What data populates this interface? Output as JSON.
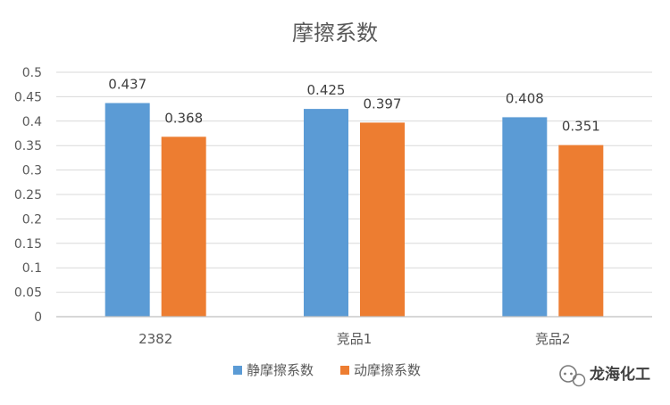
{
  "chart_data": {
    "type": "bar",
    "title": "摩擦系数",
    "xlabel": "",
    "ylabel": "",
    "categories": [
      "2382",
      "竞品1",
      "竞品2"
    ],
    "series": [
      {
        "name": "静摩擦系数",
        "values": [
          0.437,
          0.425,
          0.408
        ],
        "color": "#5B9BD5"
      },
      {
        "name": "动摩擦系数",
        "values": [
          0.368,
          0.397,
          0.351
        ],
        "color": "#ED7D31"
      }
    ],
    "ylim": [
      0,
      0.5
    ],
    "yticks": [
      0,
      0.05,
      0.1,
      0.15,
      0.2,
      0.25,
      0.3,
      0.35,
      0.4,
      0.45,
      0.5
    ],
    "ytick_labels": [
      "0",
      "0.05",
      "0.1",
      "0.15",
      "0.2",
      "0.25",
      "0.3",
      "0.35",
      "0.4",
      "0.45",
      "0.5"
    ],
    "data_labels": [
      [
        "0.437",
        "0.425",
        "0.408"
      ],
      [
        "0.368",
        "0.397",
        "0.351"
      ]
    ],
    "grid": true,
    "legend_position": "bottom"
  },
  "watermark": {
    "text": "龙海化工",
    "icon": "wechat-icon"
  }
}
